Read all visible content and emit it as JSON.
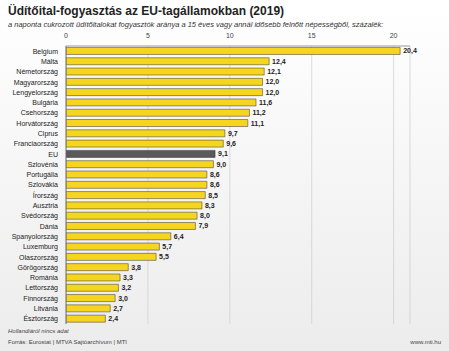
{
  "chart_data": {
    "type": "bar",
    "orientation": "horizontal",
    "title": "Üdítőital-fogyasztás az EU-tagállamokban (2019)",
    "subtitle": "a naponta cukrozott üdítőitalokat fogyasztók aránya a 15 éves vagy annál idősebb felnőtt népességből, százalék:",
    "categories": [
      "Belgium",
      "Málta",
      "Németország",
      "Magyarország",
      "Lengyelország",
      "Bulgária",
      "Csehország",
      "Horvátország",
      "Ciprus",
      "Franciaország",
      "EU",
      "Szlovénia",
      "Portugália",
      "Szlovákia",
      "Írország",
      "Ausztria",
      "Svédország",
      "Dánia",
      "Spanyolország",
      "Luxemburg",
      "Olaszország",
      "Görögország",
      "Románia",
      "Lettország",
      "Finnország",
      "Litvánia",
      "Észtország"
    ],
    "values": [
      20.4,
      12.4,
      12.1,
      12.0,
      12.0,
      11.6,
      11.2,
      11.1,
      9.7,
      9.6,
      9.1,
      9.0,
      8.6,
      8.6,
      8.5,
      8.3,
      8.0,
      7.9,
      6.4,
      5.7,
      5.5,
      3.8,
      3.3,
      3.2,
      3.0,
      2.7,
      2.4
    ],
    "value_labels": [
      "20,4",
      "12,4",
      "12,1",
      "12,0",
      "12,0",
      "11,6",
      "11,2",
      "11,1",
      "9,7",
      "9,6",
      "9,1",
      "9,0",
      "8,6",
      "8,6",
      "8,5",
      "8,3",
      "8,0",
      "7,9",
      "6,4",
      "5,7",
      "5,5",
      "3,8",
      "3,3",
      "3,2",
      "3,0",
      "2,7",
      "2,4"
    ],
    "colors": [
      "#f6d51f",
      "#f6d51f",
      "#f6d51f",
      "#f6d51f",
      "#f6d51f",
      "#f6d51f",
      "#f6d51f",
      "#f6d51f",
      "#f6d51f",
      "#f6d51f",
      "#5a5a5a",
      "#f6d51f",
      "#f6d51f",
      "#f6d51f",
      "#f6d51f",
      "#f6d51f",
      "#f6d51f",
      "#f6d51f",
      "#f6d51f",
      "#f6d51f",
      "#f6d51f",
      "#f6d51f",
      "#f6d51f",
      "#f6d51f",
      "#f6d51f",
      "#f6d51f",
      "#f6d51f"
    ],
    "xlim": [
      0,
      21
    ],
    "xticks": [
      0,
      5,
      10,
      15,
      20
    ],
    "grid": true,
    "data_labels": true,
    "note": "Hollandiáról nincs adat",
    "source": "Forrás: Eurostat | MTVA Sajtóarchívum | MTI",
    "website": "www.mti.hu"
  }
}
